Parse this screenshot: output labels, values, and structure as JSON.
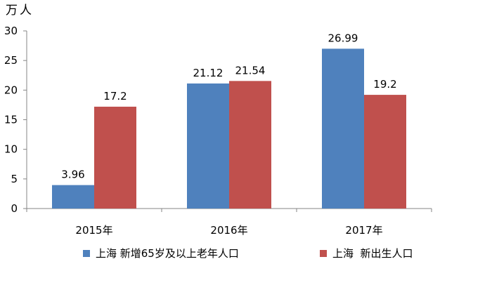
{
  "chart_data": {
    "type": "bar",
    "unit_label": "万人",
    "categories": [
      "2015年",
      "2016年",
      "2017年"
    ],
    "series": [
      {
        "name": "上海 新增65岁及以上老年人口",
        "values": [
          3.96,
          21.12,
          26.99
        ],
        "color": "#4f81bd"
      },
      {
        "name": "上海  新出生人口",
        "values": [
          17.2,
          21.54,
          19.2
        ],
        "color": "#c0504d"
      }
    ],
    "data_labels": [
      [
        "3.96",
        "21.12",
        "26.99"
      ],
      [
        "17.2",
        "21.54",
        "19.2"
      ]
    ],
    "yticks": [
      "0",
      "5",
      "10",
      "15",
      "20",
      "25",
      "30"
    ],
    "ylim": [
      0,
      30
    ],
    "grid": false,
    "legend_position": "bottom"
  }
}
